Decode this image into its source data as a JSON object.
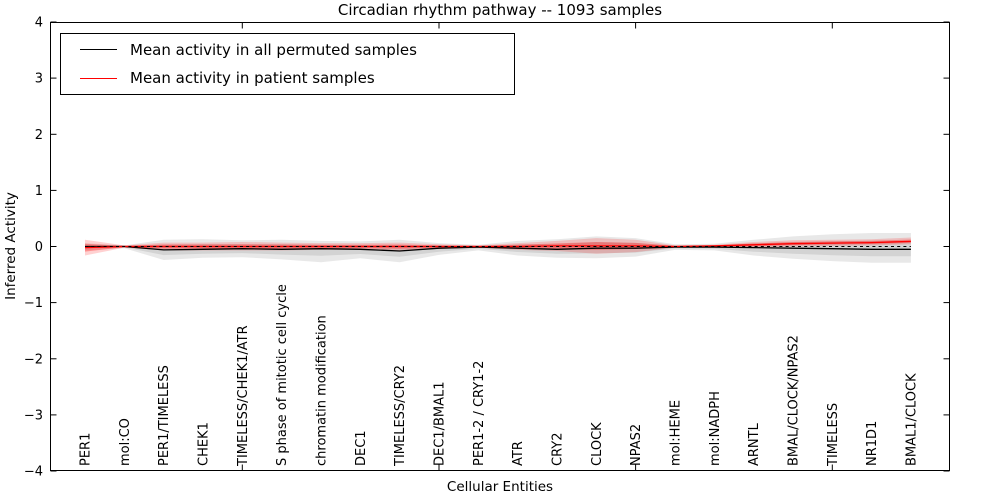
{
  "chart_data": {
    "type": "line",
    "title": "Circadian rhythm pathway -- 1093 samples",
    "xlabel": "Cellular Entities",
    "ylabel": "Inferred Activity",
    "ylim": [
      -4,
      4
    ],
    "grid": false,
    "legend_position": "upper left",
    "colors": {
      "permuted": "#000000",
      "patient": "#ff0000",
      "permuted_band": "rgba(0,0,0,0.09)",
      "patient_band": "rgba(255,0,0,0.18)"
    },
    "yticks": [
      {
        "value": 4,
        "label": "4"
      },
      {
        "value": 3,
        "label": "3"
      },
      {
        "value": 2,
        "label": "2"
      },
      {
        "value": 1,
        "label": "1"
      },
      {
        "value": 0,
        "label": "0"
      },
      {
        "value": -1,
        "label": "−1"
      },
      {
        "value": -2,
        "label": "−2"
      },
      {
        "value": -3,
        "label": "−3"
      },
      {
        "value": -4,
        "label": "−4"
      }
    ],
    "xtick_index_positions": [
      4,
      9,
      14,
      19
    ],
    "categories": [
      "PER1",
      "mol:CO",
      "PER1/TIMELESS",
      "CHEK1",
      "TIMELESS/CHEK1/ATR",
      "S phase of mitotic cell cycle",
      "chromatin modification",
      "DEC1",
      "TIMELESS/CRY2",
      "DEC1/BMAL1",
      "PER1-2 / CRY1-2",
      "ATR",
      "CRY2",
      "CLOCK",
      "NPAS2",
      "mol:HEME",
      "mol:NADPH",
      "ARNTL",
      "BMAL/CLOCK/NPAS2",
      "TIMELESS",
      "NR1D1",
      "BMAL1/CLOCK"
    ],
    "zero_line": {
      "y": 0,
      "style": "dashed",
      "color": "#000000"
    },
    "series": [
      {
        "name": "Mean activity in all permuted samples",
        "color": "#000000",
        "values": [
          0.0,
          0.0,
          -0.06,
          -0.05,
          -0.04,
          -0.05,
          -0.04,
          -0.05,
          -0.08,
          -0.03,
          -0.01,
          -0.03,
          -0.05,
          -0.03,
          -0.03,
          -0.01,
          -0.01,
          -0.02,
          -0.03,
          -0.04,
          -0.05,
          -0.05
        ],
        "band_upper": [
          0.06,
          0.02,
          0.12,
          0.13,
          0.11,
          0.12,
          0.1,
          0.09,
          0.12,
          0.06,
          0.03,
          0.1,
          0.13,
          0.18,
          0.15,
          0.04,
          0.05,
          0.12,
          0.18,
          0.22,
          0.24,
          0.24
        ],
        "band_lower": [
          -0.07,
          -0.03,
          -0.24,
          -0.2,
          -0.19,
          -0.23,
          -0.28,
          -0.21,
          -0.28,
          -0.15,
          -0.07,
          -0.16,
          -0.2,
          -0.21,
          -0.18,
          -0.06,
          -0.07,
          -0.16,
          -0.22,
          -0.26,
          -0.29,
          -0.29
        ]
      },
      {
        "name": "Mean activity in patient samples",
        "color": "#ff0000",
        "values": [
          -0.02,
          0.0,
          0.0,
          0.0,
          0.0,
          0.0,
          0.0,
          0.0,
          0.0,
          0.0,
          0.0,
          0.0,
          0.01,
          0.01,
          0.01,
          0.0,
          0.01,
          0.03,
          0.05,
          0.06,
          0.07,
          0.09
        ],
        "band_upper": [
          0.12,
          0.02,
          0.07,
          0.07,
          0.08,
          0.07,
          0.06,
          0.06,
          0.07,
          0.04,
          0.02,
          0.06,
          0.1,
          0.15,
          0.12,
          0.02,
          0.03,
          0.08,
          0.11,
          0.12,
          0.13,
          0.16
        ],
        "band_lower": [
          -0.16,
          -0.02,
          -0.07,
          -0.07,
          -0.07,
          -0.07,
          -0.06,
          -0.06,
          -0.08,
          -0.04,
          -0.02,
          -0.06,
          -0.08,
          -0.13,
          -0.1,
          -0.02,
          -0.02,
          -0.02,
          0.0,
          0.01,
          0.02,
          0.04
        ]
      }
    ]
  }
}
